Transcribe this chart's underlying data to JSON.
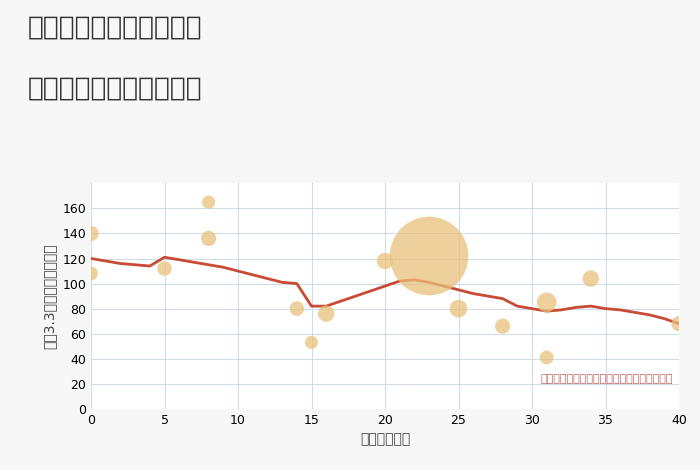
{
  "title_line1": "兵庫県西宮市今津曙町の",
  "title_line2": "築年数別中古戸建て価格",
  "xlabel": "築年数（年）",
  "ylabel": "坪（3.3㎡）単価（万円）",
  "background_color": "#f7f7f7",
  "plot_bg_color": "#ffffff",
  "xlim": [
    0,
    40
  ],
  "ylim": [
    0,
    180
  ],
  "xticks": [
    0,
    5,
    10,
    15,
    20,
    25,
    30,
    35,
    40
  ],
  "yticks": [
    0,
    20,
    40,
    60,
    80,
    100,
    120,
    140,
    160
  ],
  "bubble_x": [
    0,
    0,
    5,
    8,
    8,
    14,
    15,
    16,
    20,
    23,
    25,
    28,
    31,
    31,
    34,
    40
  ],
  "bubble_y": [
    140,
    108,
    112,
    165,
    136,
    80,
    53,
    76,
    118,
    122,
    80,
    66,
    85,
    41,
    104,
    68
  ],
  "bubble_size": [
    120,
    100,
    110,
    90,
    120,
    110,
    90,
    140,
    140,
    3200,
    160,
    120,
    200,
    100,
    140,
    120
  ],
  "bubble_color": "#e8c17a",
  "bubble_alpha": 0.75,
  "line_x": [
    0,
    1,
    2,
    3,
    4,
    5,
    6,
    7,
    8,
    9,
    10,
    11,
    12,
    13,
    14,
    15,
    16,
    17,
    18,
    19,
    20,
    21,
    22,
    23,
    24,
    25,
    26,
    27,
    28,
    29,
    30,
    31,
    32,
    33,
    34,
    35,
    36,
    37,
    38,
    39,
    40
  ],
  "line_y": [
    120,
    118,
    116,
    115,
    114,
    121,
    119,
    117,
    115,
    113,
    110,
    107,
    104,
    101,
    100,
    82,
    82,
    86,
    90,
    94,
    98,
    102,
    103,
    101,
    98,
    95,
    92,
    90,
    88,
    82,
    80,
    78,
    79,
    81,
    82,
    80,
    79,
    77,
    75,
    72,
    68
  ],
  "line_color": "#c94a35",
  "line_width": 2.0,
  "annotation_text": "円の大きさは、取引のあった物件面積を示す",
  "annotation_color": "#c06060",
  "title_fontsize": 19,
  "axis_label_fontsize": 10,
  "tick_fontsize": 9,
  "annotation_fontsize": 8
}
